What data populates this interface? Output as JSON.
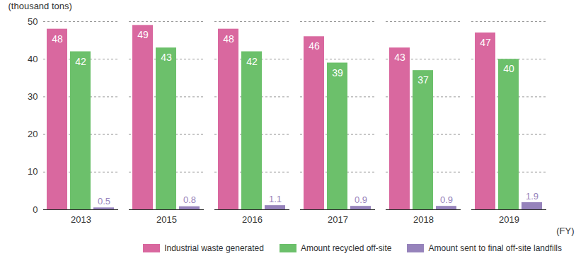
{
  "chart_data": {
    "type": "bar",
    "y_label": "(thousand tons)",
    "x_label": "(FY)",
    "categories": [
      "2013",
      "2015",
      "2016",
      "2017",
      "2018",
      "2019"
    ],
    "series": [
      {
        "name": "Industrial waste generated",
        "color": "#d9689f",
        "values": [
          48,
          49,
          48,
          46,
          43,
          47
        ]
      },
      {
        "name": "Amount recycled off-site",
        "color": "#6cc06b",
        "values": [
          42,
          43,
          42,
          39,
          37,
          40
        ]
      },
      {
        "name": "Amount sent to final off-site landfills",
        "color": "#9683bb",
        "values": [
          0.5,
          0.8,
          1.1,
          0.9,
          0.9,
          1.9
        ]
      }
    ],
    "ylim": [
      0,
      50
    ],
    "yticks": [
      0,
      10,
      20,
      30,
      40,
      50
    ],
    "grid": true,
    "legend": "bottom",
    "data_labels": true
  }
}
